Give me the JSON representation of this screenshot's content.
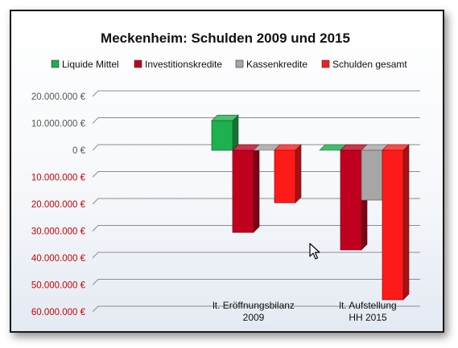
{
  "chart_data": {
    "type": "bar",
    "title": "Meckenheim: Schulden 2009 und 2015",
    "categories": [
      "lt. Eröffnungsbilanz\n2009",
      "lt. Aufstellung\nHH 2015"
    ],
    "series": [
      {
        "name": "Liquide Mittel",
        "values": [
          11000000,
          0
        ],
        "color": "#1fb050"
      },
      {
        "name": "Investitionskredite",
        "values": [
          -30500000,
          -37000000
        ],
        "color": "#c0001f"
      },
      {
        "name": "Kassenkredite",
        "values": [
          0,
          -18500000
        ],
        "color": "#a6a6a6"
      },
      {
        "name": "Schulden gesamt",
        "values": [
          -19500000,
          -55500000
        ],
        "color": "#ff1a1a"
      }
    ],
    "yticks": [
      "20.000.000 €",
      "10.000.000 €",
      "0 €",
      "10.000.000 €",
      "20.000.000 €",
      "30.000.000 €",
      "40.000.000 €",
      "50.000.000 €",
      "60.000.000 €"
    ],
    "ytick_values": [
      20000000,
      10000000,
      0,
      -10000000,
      -20000000,
      -30000000,
      -40000000,
      -50000000,
      -60000000
    ],
    "ylim": [
      -60000000,
      20000000
    ],
    "legend_position": "top",
    "grid": true,
    "style": "3d-columns",
    "colors": {
      "positive_tick": "#555555",
      "negative_tick": "#cc0000"
    }
  }
}
